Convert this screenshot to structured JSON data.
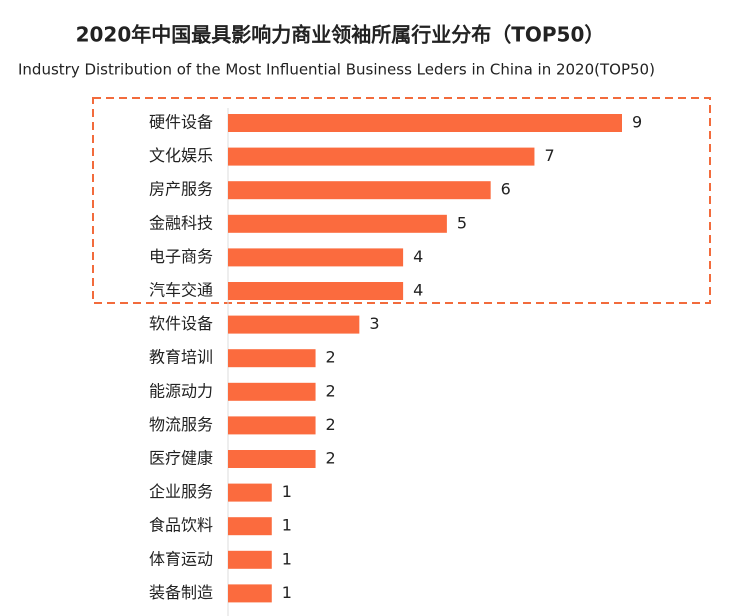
{
  "chart_data": {
    "type": "bar",
    "orientation": "horizontal",
    "title": "2020年中国最具影响力商业领袖所属行业分布（TOP50）",
    "subtitle": "Industry Distribution of the Most Influential Business Leders in China in 2020(TOP50)",
    "categories": [
      "硬件设备",
      "文化娱乐",
      "房产服务",
      "金融科技",
      "电子商务",
      "汽车交通",
      "软件设备",
      "教育培训",
      "能源动力",
      "物流服务",
      "医疗健康",
      "企业服务",
      "食品饮料",
      "体育运动",
      "装备制造"
    ],
    "values": [
      9,
      7,
      6,
      5,
      4,
      4,
      3,
      2,
      2,
      2,
      2,
      1,
      1,
      1,
      1
    ],
    "color": "#fb6b3e"
  }
}
